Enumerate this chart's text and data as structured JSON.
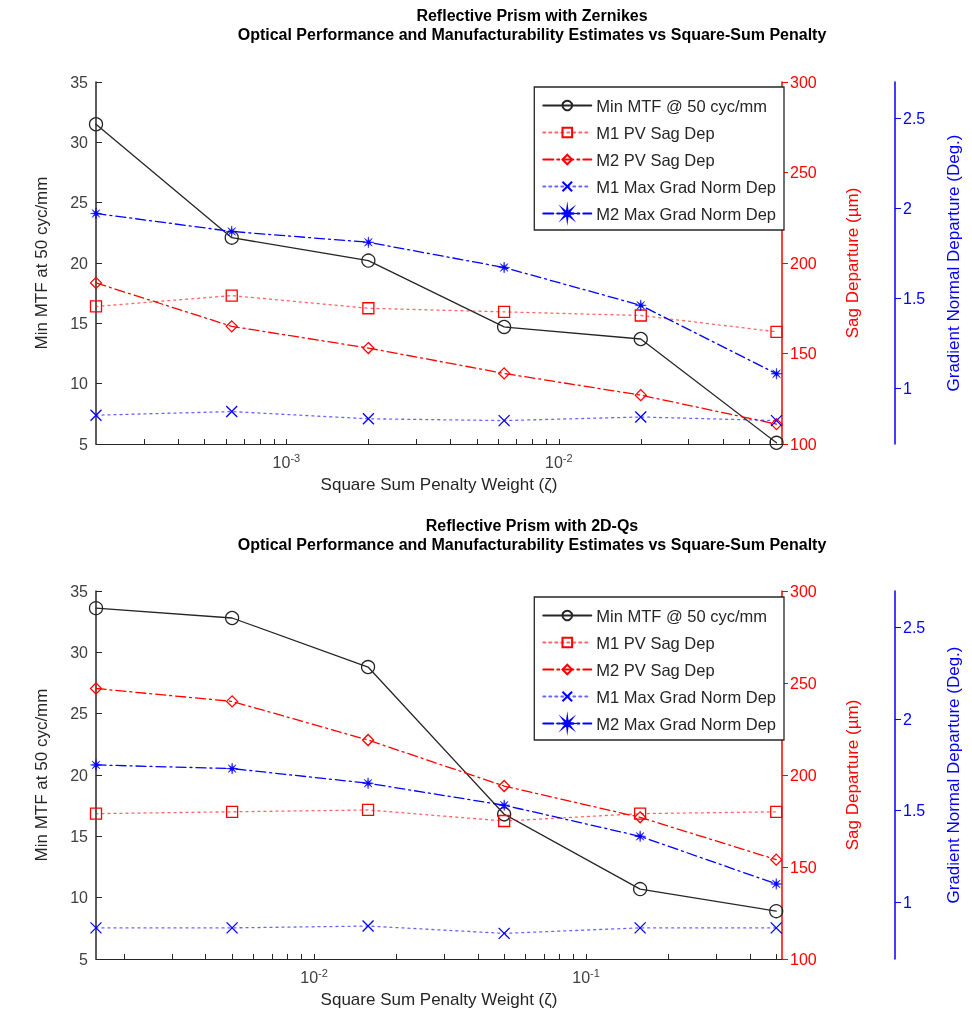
{
  "chart_data": [
    {
      "type": "line",
      "title": "Reflective Prism with Zernikes",
      "subtitle": "Optical Performance and Manufacturability Estimates vs Square-Sum Penalty",
      "xlabel": "Square Sum Penalty Weight (ζ)",
      "ylabel": "Min MTF at 50 cyc/mm",
      "y2label": "Sag Departure (µm)",
      "y3label": "Gradient Normal Departure (Deg.)",
      "log": "x",
      "legend": "top right",
      "x": [
        0.0002,
        0.00063,
        0.002,
        0.0063,
        0.02,
        0.063
      ],
      "xlim": [
        0.0002,
        0.066
      ],
      "xticks": [
        {
          "value": 0.0003,
          "label": null
        },
        {
          "value": 0.0004,
          "label": null
        },
        {
          "value": 0.0005,
          "label": null
        },
        {
          "value": 0.0006,
          "label": null
        },
        {
          "value": 0.0007,
          "label": null
        },
        {
          "value": 0.0008,
          "label": null
        },
        {
          "value": 0.0009,
          "label": null
        },
        {
          "value": 0.001,
          "label": "10$^{-3}$"
        },
        {
          "value": 0.002,
          "label": null
        },
        {
          "value": 0.003,
          "label": null
        },
        {
          "value": 0.004,
          "label": null
        },
        {
          "value": 0.005,
          "label": null
        },
        {
          "value": 0.006,
          "label": null
        },
        {
          "value": 0.007,
          "label": null
        },
        {
          "value": 0.008,
          "label": null
        },
        {
          "value": 0.009,
          "label": null
        },
        {
          "value": 0.01,
          "label": "10$^{-2}$"
        },
        {
          "value": 0.02,
          "label": null
        },
        {
          "value": 0.03,
          "label": null
        },
        {
          "value": 0.04,
          "label": null
        },
        {
          "value": 0.05,
          "label": null
        },
        {
          "value": 0.06,
          "label": null
        }
      ],
      "ylim": [
        5,
        35
      ],
      "yticks": [
        5,
        10,
        15,
        20,
        25,
        30,
        35
      ],
      "y2lim": [
        100,
        300
      ],
      "y2ticks": [
        100,
        150,
        200,
        250,
        300
      ],
      "y3lim": [
        0.69,
        2.7
      ],
      "y3ticks": [
        1,
        1.5,
        2,
        2.5
      ],
      "series": [
        {
          "name": "Min MTF @ 50 cyc/mm",
          "color": "#262626",
          "marker": "circle",
          "line_style": "solid",
          "values": [
            31.5,
            22.1,
            20.2,
            14.7,
            13.7,
            5.1
          ]
        },
        {
          "name": "M1 PV Sag Dep",
          "color": "#ff0000",
          "marker": "square",
          "line_style": "dotted",
          "axis": "y2",
          "values": [
            176,
            182,
            175,
            173,
            171,
            162
          ]
        },
        {
          "name": "M2 PV Sag Dep",
          "color": "#ff0000",
          "marker": "diamond",
          "line_style": "dashdot",
          "axis": "y2",
          "values": [
            189,
            165,
            153,
            139,
            127,
            111
          ]
        },
        {
          "name": "M1 Max Grad Norm Dep",
          "color": "#0000ff",
          "marker": "cross",
          "line_style": "dotted",
          "axis": "y3",
          "values": [
            0.85,
            0.87,
            0.83,
            0.82,
            0.84,
            0.82
          ]
        },
        {
          "name": "M2 Max Grad Norm Dep",
          "color": "#0000ff",
          "marker": "star",
          "line_style": "dashdot",
          "axis": "y3",
          "values": [
            1.97,
            1.87,
            1.81,
            1.67,
            1.46,
            1.08
          ]
        }
      ]
    },
    {
      "type": "line",
      "title": "Reflective Prism with 2D-Qs",
      "subtitle": "Optical Performance and Manufacturability Estimates vs Square-Sum Penalty",
      "xlabel": "Square Sum Penalty Weight (ζ)",
      "ylabel": "Min MTF at 50 cyc/mm",
      "y2label": "Sag Departure (µm)",
      "y3label": "Gradient Normal Departure (Deg.)",
      "log": "x",
      "legend": "top right",
      "x": [
        0.00158,
        0.005,
        0.0158,
        0.05,
        0.158,
        0.5
      ],
      "xlim": [
        0.00158,
        0.525
      ],
      "xticks": [
        {
          "value": 0.002,
          "label": null
        },
        {
          "value": 0.003,
          "label": null
        },
        {
          "value": 0.004,
          "label": null
        },
        {
          "value": 0.005,
          "label": null
        },
        {
          "value": 0.006,
          "label": null
        },
        {
          "value": 0.007,
          "label": null
        },
        {
          "value": 0.008,
          "label": null
        },
        {
          "value": 0.009,
          "label": null
        },
        {
          "value": 0.01,
          "label": "10$^{-2}$"
        },
        {
          "value": 0.02,
          "label": null
        },
        {
          "value": 0.03,
          "label": null
        },
        {
          "value": 0.04,
          "label": null
        },
        {
          "value": 0.05,
          "label": null
        },
        {
          "value": 0.06,
          "label": null
        },
        {
          "value": 0.07,
          "label": null
        },
        {
          "value": 0.08,
          "label": null
        },
        {
          "value": 0.09,
          "label": null
        },
        {
          "value": 0.1,
          "label": "10$^{-1}$"
        },
        {
          "value": 0.2,
          "label": null
        },
        {
          "value": 0.3,
          "label": null
        },
        {
          "value": 0.4,
          "label": null
        },
        {
          "value": 0.5,
          "label": null
        }
      ],
      "ylim": [
        5,
        35
      ],
      "yticks": [
        5,
        10,
        15,
        20,
        25,
        30,
        35
      ],
      "y2lim": [
        100,
        300
      ],
      "y2ticks": [
        100,
        150,
        200,
        250,
        300
      ],
      "y3lim": [
        0.69,
        2.7
      ],
      "y3ticks": [
        1,
        1.5,
        2,
        2.5
      ],
      "series": [
        {
          "name": "Min MTF @ 50 cyc/mm",
          "color": "#262626",
          "marker": "circle",
          "line_style": "solid",
          "values": [
            33.6,
            32.8,
            28.8,
            16.8,
            10.7,
            8.9
          ]
        },
        {
          "name": "M1 PV Sag Dep",
          "color": "#ff0000",
          "marker": "square",
          "line_style": "dotted",
          "axis": "y2",
          "values": [
            179,
            180,
            181,
            175,
            179,
            180
          ]
        },
        {
          "name": "M2 PV Sag Dep",
          "color": "#ff0000",
          "marker": "diamond",
          "line_style": "dashdot",
          "axis": "y2",
          "values": [
            247,
            240,
            219,
            194,
            177,
            154
          ]
        },
        {
          "name": "M1 Max Grad Norm Dep",
          "color": "#0000ff",
          "marker": "cross",
          "line_style": "dotted",
          "axis": "y3",
          "values": [
            0.86,
            0.86,
            0.87,
            0.83,
            0.86,
            0.86
          ]
        },
        {
          "name": "M2 Max Grad Norm Dep",
          "color": "#0000ff",
          "marker": "star",
          "line_style": "dashdot",
          "axis": "y3",
          "values": [
            1.75,
            1.73,
            1.65,
            1.53,
            1.36,
            1.1
          ]
        }
      ]
    }
  ]
}
